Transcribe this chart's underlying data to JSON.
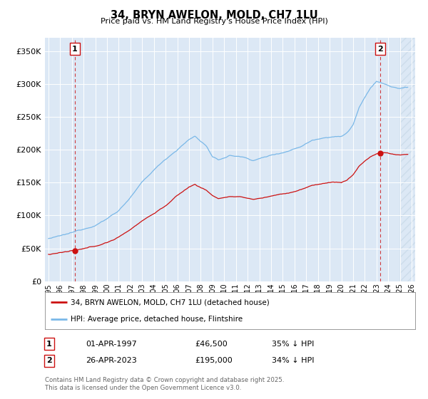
{
  "title": "34, BRYN AWELON, MOLD, CH7 1LU",
  "subtitle": "Price paid vs. HM Land Registry's House Price Index (HPI)",
  "ylabel_ticks": [
    "£0",
    "£50K",
    "£100K",
    "£150K",
    "£200K",
    "£250K",
    "£300K",
    "£350K"
  ],
  "ytick_vals": [
    0,
    50000,
    100000,
    150000,
    200000,
    250000,
    300000,
    350000
  ],
  "ylim": [
    0,
    370000
  ],
  "xlim_start": 1994.7,
  "xlim_end": 2026.3,
  "hpi_color": "#7ab8e8",
  "price_color": "#cc1111",
  "vline_color": "#cc1111",
  "bg_color": "#dce8f5",
  "hatch_color": "#c8d8e8",
  "marker_color": "#cc1111",
  "point1_x": 1997.25,
  "point1_y": 46500,
  "point2_x": 2023.33,
  "point2_y": 195000,
  "hatch_start": 2025.0,
  "legend_label1": "34, BRYN AWELON, MOLD, CH7 1LU (detached house)",
  "legend_label2": "HPI: Average price, detached house, Flintshire",
  "table_row1": [
    "1",
    "01-APR-1997",
    "£46,500",
    "35% ↓ HPI"
  ],
  "table_row2": [
    "2",
    "26-APR-2023",
    "£195,000",
    "34% ↓ HPI"
  ],
  "footnote": "Contains HM Land Registry data © Crown copyright and database right 2025.\nThis data is licensed under the Open Government Licence v3.0."
}
